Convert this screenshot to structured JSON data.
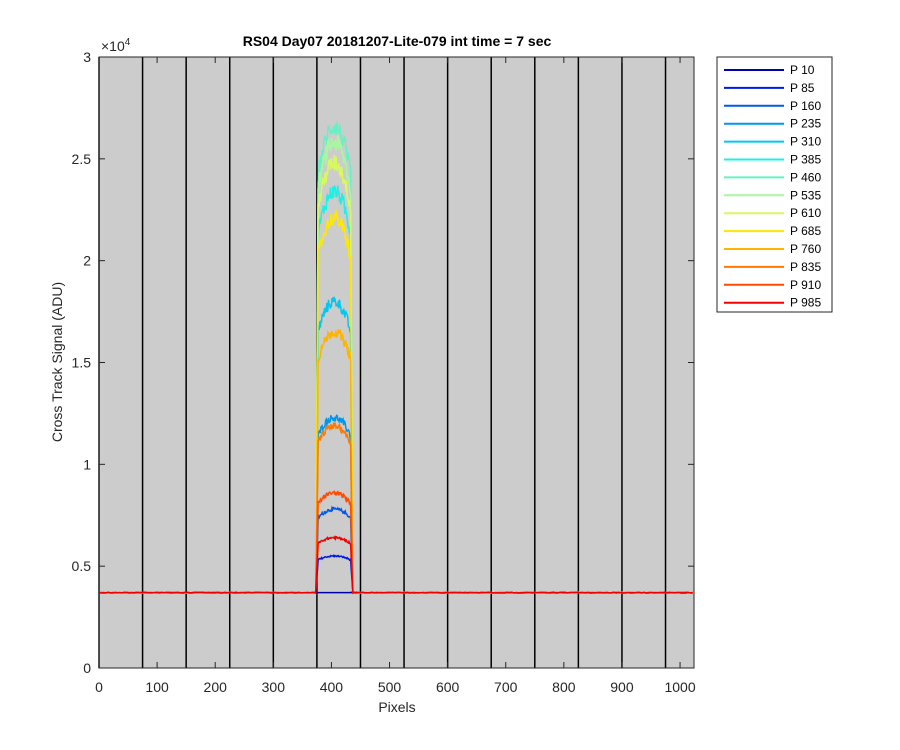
{
  "chart_data": {
    "type": "line",
    "title": "RS04 Day07 20181207-Lite-079 int time = 7 sec",
    "xlabel": "Pixels",
    "ylabel": "Cross Track Signal (ADU)",
    "xlim": [
      0,
      1024
    ],
    "ylim": [
      0,
      30000
    ],
    "y_exponent_label": "×10",
    "y_exponent_power": "4",
    "xticks": [
      0,
      100,
      200,
      300,
      400,
      500,
      600,
      700,
      800,
      900,
      1000
    ],
    "xtick_labels": [
      "0",
      "100",
      "200",
      "300",
      "400",
      "500",
      "600",
      "700",
      "800",
      "900",
      "1000"
    ],
    "yticks": [
      0,
      5000,
      10000,
      15000,
      20000,
      25000,
      30000
    ],
    "ytick_labels": [
      "0",
      "0.5",
      "1",
      "1.5",
      "2",
      "2.5",
      "3"
    ],
    "vertical_lines_x": [
      0,
      75,
      150,
      225,
      300,
      375,
      450,
      525,
      600,
      675,
      750,
      825,
      900,
      975
    ],
    "plot_background": "#cccccc",
    "legend_position": "outside-right-top",
    "baseline": 3700,
    "illuminated_band": [
      375,
      435
    ],
    "series": [
      {
        "name": "P 10",
        "color": "#0000a8",
        "peak": 3700
      },
      {
        "name": "P 85",
        "color": "#0019e6",
        "peak": 5500
      },
      {
        "name": "P 160",
        "color": "#0058e8",
        "peak": 7800
      },
      {
        "name": "P 235",
        "color": "#0096ec",
        "peak": 12300
      },
      {
        "name": "P 310",
        "color": "#00c8f0",
        "peak": 18000
      },
      {
        "name": "P 385",
        "color": "#1ef0e6",
        "peak": 23400
      },
      {
        "name": "P 460",
        "color": "#68f0c4",
        "peak": 26600
      },
      {
        "name": "P 535",
        "color": "#a8f7a0",
        "peak": 25800
      },
      {
        "name": "P 610",
        "color": "#d8f860",
        "peak": 24800
      },
      {
        "name": "P 685",
        "color": "#ffe800",
        "peak": 22100
      },
      {
        "name": "P 760",
        "color": "#ffb400",
        "peak": 16500
      },
      {
        "name": "P 835",
        "color": "#ff7a00",
        "peak": 11900
      },
      {
        "name": "P 910",
        "color": "#ff4a00",
        "peak": 8600
      },
      {
        "name": "P 985",
        "color": "#f00000",
        "peak": 6400
      }
    ]
  }
}
